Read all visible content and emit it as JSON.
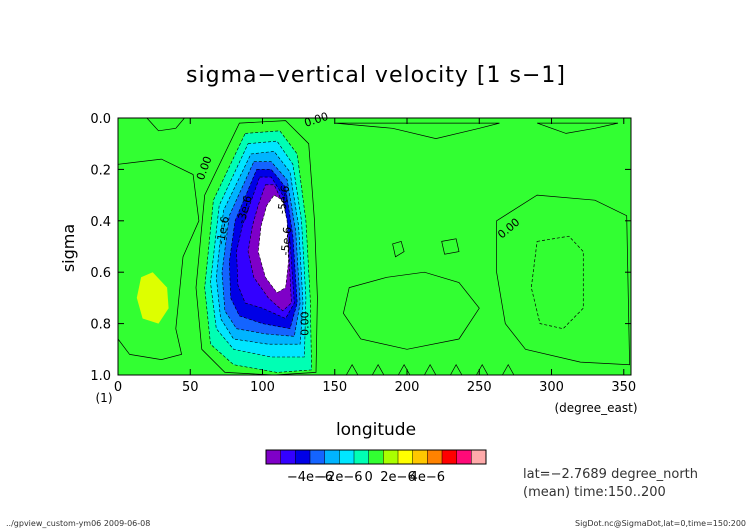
{
  "chart_data": {
    "type": "contour",
    "title": "sigma−vertical velocity [1 s−1]",
    "xlabel": "longitude",
    "xunit": "(degree_east)",
    "ylabel": "sigma",
    "yunit": "(1)",
    "xlim": [
      0,
      355
    ],
    "ylim": [
      1.0,
      0.0
    ],
    "xticks": [
      "0",
      "50",
      "100",
      "150",
      "200",
      "250",
      "300",
      "350"
    ],
    "yticks": [
      "0.0",
      "0.2",
      "0.4",
      "0.6",
      "0.8",
      "1.0"
    ],
    "contour_labels": [
      "0.00",
      "0.00",
      "0.00",
      "0.00",
      "-1e-6",
      "-3e-6",
      "-5e-6",
      "-5e-6"
    ],
    "colorbar": {
      "ticks": [
        "−4e−6",
        "−2e−6",
        "0",
        "2e−6",
        "4e−6"
      ],
      "colors": [
        "#7f00c8",
        "#3300ff",
        "#0000e6",
        "#1464ff",
        "#00b4ff",
        "#00e6ff",
        "#00ffb4",
        "#32ff32",
        "#aaff00",
        "#ffff00",
        "#ffc800",
        "#ff8200",
        "#ff0000",
        "#ff0a78",
        "#ffaaaa"
      ]
    },
    "fill_colors": {
      "background": "#32ff32",
      "positive_patch": "#ddff00",
      "strongest_negative": "#ffffff"
    }
  },
  "info": {
    "lat": "lat=−2.7689 degree_north",
    "time": "(mean) time:150..200"
  },
  "footer": {
    "left": "../gpview_custom-ym06  2009-06-08",
    "right": "SigDot.nc@SigmaDot,lat=0,time=150:200"
  }
}
